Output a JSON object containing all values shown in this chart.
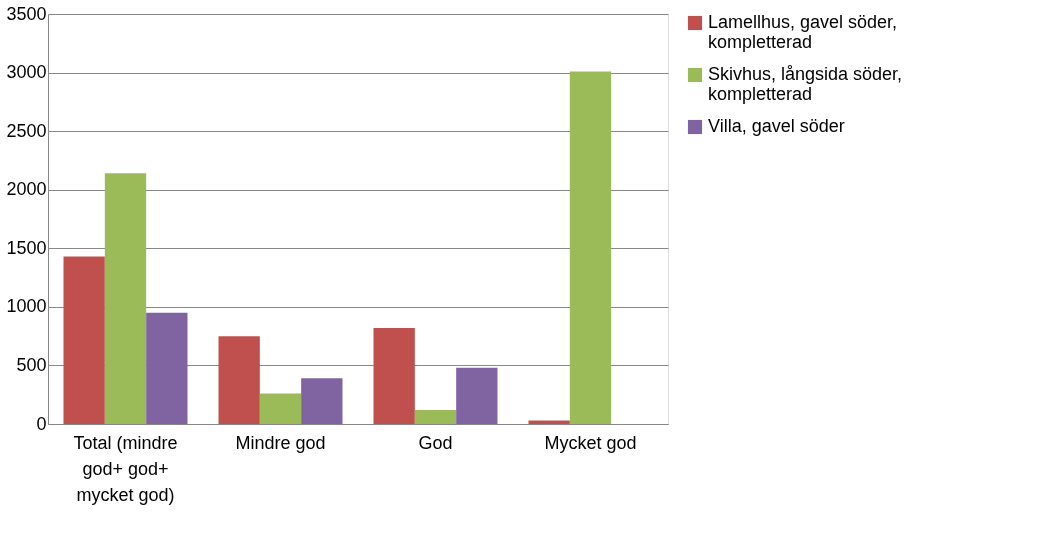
{
  "chart_data": {
    "type": "bar",
    "categories": [
      "Total (mindre god+ god+ mycket god)",
      "Mindre god",
      "God",
      "Mycket god"
    ],
    "series": [
      {
        "name": "Lamellhus, gavel söder, kompletterad",
        "color": "#c0504d",
        "values": [
          1430,
          750,
          820,
          30
        ]
      },
      {
        "name": "Skivhus, långsida söder, kompletterad",
        "color": "#9bbb59",
        "values": [
          2140,
          260,
          120,
          3010
        ]
      },
      {
        "name": "Villa, gavel söder",
        "color": "#8064a2",
        "values": [
          950,
          390,
          480,
          0
        ]
      }
    ],
    "ylim": [
      0,
      3500
    ],
    "yticks": [
      0,
      500,
      1000,
      1500,
      2000,
      2500,
      3000,
      3500
    ],
    "grid": "y",
    "legend": "right"
  }
}
